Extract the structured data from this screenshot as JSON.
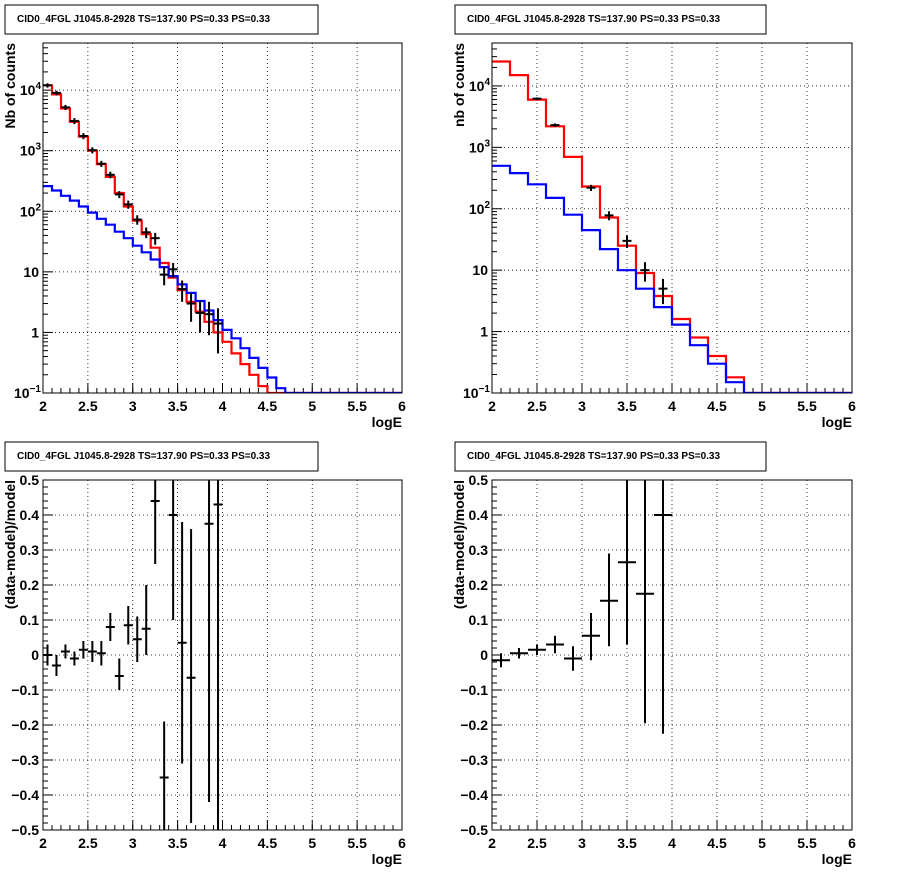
{
  "chart_data": [
    {
      "type": "line",
      "title": "CID0_4FGL J1045.8-2928 TS=137.90 PS=0.33 PS=0.33",
      "xlabel": "logE",
      "ylabel": "Nb of counts",
      "xlim": [
        2,
        6
      ],
      "ylim": [
        0.1,
        60000
      ],
      "yscale": "log",
      "grid": true,
      "xticks": [
        "2",
        "2.5",
        "3",
        "3.5",
        "4",
        "4.5",
        "5",
        "5.5",
        "6"
      ],
      "yticks": [
        {
          "v": 0.1,
          "label": "10",
          "sup": "−1"
        },
        {
          "v": 1,
          "label": "1",
          "sup": ""
        },
        {
          "v": 10,
          "label": "10",
          "sup": ""
        },
        {
          "v": 100,
          "label": "10",
          "sup": "2"
        },
        {
          "v": 1000,
          "label": "10",
          "sup": "3"
        },
        {
          "v": 10000,
          "label": "10",
          "sup": "4"
        }
      ],
      "bin_edges": [
        2.0,
        2.1,
        2.2,
        2.3,
        2.4,
        2.5,
        2.6,
        2.7,
        2.8,
        2.9,
        3.0,
        3.1,
        3.2,
        3.3,
        3.4,
        3.5,
        3.6,
        3.7,
        3.8,
        3.9,
        4.0,
        4.1,
        4.2,
        4.3,
        4.4,
        4.5,
        4.6,
        4.7,
        4.8,
        4.9,
        5.0,
        5.1,
        5.2,
        5.3,
        5.4,
        5.5,
        5.6,
        5.7,
        5.8,
        5.9,
        6.0
      ],
      "series": [
        {
          "color": "#ff0000",
          "style": "step",
          "values": [
            12000,
            8500,
            5000,
            3000,
            1700,
            1000,
            600,
            370,
            200,
            120,
            70,
            42,
            25,
            14,
            8,
            5,
            3.2,
            2.2,
            1.5,
            1.0,
            0.7,
            0.45,
            0.3,
            0.2,
            0.13,
            0.1,
            0.1,
            0.1,
            0.1,
            0.1,
            0.1,
            0.1,
            0.1,
            0.1,
            0.1,
            0.1,
            0.1,
            0.1,
            0.1,
            0.1
          ]
        },
        {
          "color": "#0000ff",
          "style": "step",
          "values": [
            260,
            220,
            180,
            150,
            120,
            95,
            75,
            60,
            46,
            36,
            27,
            21,
            16,
            12,
            8.5,
            6.2,
            4.5,
            3.3,
            2.3,
            1.6,
            1.1,
            0.8,
            0.55,
            0.38,
            0.26,
            0.18,
            0.12,
            0.1,
            0.1,
            0.1,
            0.1,
            0.1,
            0.1,
            0.1,
            0.1,
            0.1,
            0.1,
            0.1,
            0.1,
            0.1
          ]
        },
        {
          "color": "#000000",
          "style": "points",
          "points": [
            {
              "x": 2.05,
              "y": 12000,
              "lo": 11000,
              "hi": 13000
            },
            {
              "x": 2.15,
              "y": 9000,
              "lo": 8200,
              "hi": 9800
            },
            {
              "x": 2.25,
              "y": 5200,
              "lo": 4700,
              "hi": 5700
            },
            {
              "x": 2.35,
              "y": 3100,
              "lo": 2750,
              "hi": 3450
            },
            {
              "x": 2.45,
              "y": 1750,
              "lo": 1550,
              "hi": 1950
            },
            {
              "x": 2.55,
              "y": 1020,
              "lo": 900,
              "hi": 1140
            },
            {
              "x": 2.65,
              "y": 610,
              "lo": 540,
              "hi": 680
            },
            {
              "x": 2.75,
              "y": 400,
              "lo": 350,
              "hi": 450
            },
            {
              "x": 2.85,
              "y": 190,
              "lo": 165,
              "hi": 215
            },
            {
              "x": 2.95,
              "y": 130,
              "lo": 110,
              "hi": 150
            },
            {
              "x": 3.05,
              "y": 73,
              "lo": 60,
              "hi": 86
            },
            {
              "x": 3.15,
              "y": 45,
              "lo": 36,
              "hi": 54
            },
            {
              "x": 3.25,
              "y": 36,
              "lo": 28,
              "hi": 44
            },
            {
              "x": 3.35,
              "y": 9,
              "lo": 6,
              "hi": 12
            },
            {
              "x": 3.45,
              "y": 11,
              "lo": 8,
              "hi": 14
            },
            {
              "x": 3.55,
              "y": 5.2,
              "lo": 3.2,
              "hi": 7.2
            },
            {
              "x": 3.65,
              "y": 3,
              "lo": 1.5,
              "hi": 4.5
            },
            {
              "x": 3.75,
              "y": 2.1,
              "lo": 1.0,
              "hi": 3.3
            },
            {
              "x": 3.85,
              "y": 2.0,
              "lo": 0.9,
              "hi": 3.2
            },
            {
              "x": 3.95,
              "y": 1.4,
              "lo": 0.45,
              "hi": 2.5
            }
          ]
        }
      ]
    },
    {
      "type": "line",
      "title": "CID0_4FGL J1045.8-2928 TS=137.90 PS=0.33 PS=0.33",
      "xlabel": "logE",
      "ylabel": "nb of counts",
      "xlim": [
        2,
        6
      ],
      "ylim": [
        0.1,
        50000
      ],
      "yscale": "log",
      "grid": true,
      "xticks": [
        "2",
        "2.5",
        "3",
        "3.5",
        "4",
        "4.5",
        "5",
        "5.5",
        "6"
      ],
      "yticks": [
        {
          "v": 0.1,
          "label": "10",
          "sup": "−1"
        },
        {
          "v": 1,
          "label": "1",
          "sup": ""
        },
        {
          "v": 10,
          "label": "10",
          "sup": ""
        },
        {
          "v": 100,
          "label": "10",
          "sup": "2"
        },
        {
          "v": 1000,
          "label": "10",
          "sup": "3"
        },
        {
          "v": 10000,
          "label": "10",
          "sup": "4"
        }
      ],
      "bin_edges": [
        2.0,
        2.2,
        2.4,
        2.6,
        2.8,
        3.0,
        3.2,
        3.4,
        3.6,
        3.8,
        4.0,
        4.2,
        4.4,
        4.6,
        4.8,
        5.0,
        5.2,
        5.4,
        5.6,
        5.8,
        6.0
      ],
      "series": [
        {
          "color": "#ff0000",
          "style": "step",
          "values": [
            25000,
            15000,
            6000,
            2200,
            700,
            230,
            72,
            25,
            9,
            3.8,
            1.6,
            0.8,
            0.4,
            0.18,
            0.1,
            0.1,
            0.1,
            0.1,
            0.1,
            0.1
          ]
        },
        {
          "color": "#0000ff",
          "style": "step",
          "values": [
            500,
            380,
            250,
            150,
            80,
            45,
            22,
            10,
            5,
            2.5,
            1.3,
            0.6,
            0.3,
            0.15,
            0.1,
            0.1,
            0.1,
            0.1,
            0.1,
            0.1
          ]
        },
        {
          "color": "#000000",
          "style": "points",
          "points": [
            {
              "x": 2.5,
              "y": 6200,
              "lo": 5900,
              "hi": 6500
            },
            {
              "x": 2.7,
              "y": 2300,
              "lo": 2150,
              "hi": 2450
            },
            {
              "x": 3.1,
              "y": 220,
              "lo": 195,
              "hi": 245
            },
            {
              "x": 3.3,
              "y": 78,
              "lo": 65,
              "hi": 91
            },
            {
              "x": 3.5,
              "y": 30,
              "lo": 23,
              "hi": 37
            },
            {
              "x": 3.7,
              "y": 10,
              "lo": 6.5,
              "hi": 13.5
            },
            {
              "x": 3.9,
              "y": 5,
              "lo": 2.8,
              "hi": 7.2
            }
          ]
        }
      ]
    },
    {
      "type": "scatter",
      "title": "CID0_4FGL J1045.8-2928 TS=137.90 PS=0.33 PS=0.33",
      "xlabel": "logE",
      "ylabel": "(data-model)/model",
      "xlim": [
        2,
        6
      ],
      "ylim": [
        -0.5,
        0.5
      ],
      "yscale": "linear",
      "grid": true,
      "xticks": [
        "2",
        "2.5",
        "3",
        "3.5",
        "4",
        "4.5",
        "5",
        "5.5",
        "6"
      ],
      "yticks": [
        {
          "v": -0.5,
          "label": "−0.5"
        },
        {
          "v": -0.4,
          "label": "−0.4"
        },
        {
          "v": -0.3,
          "label": "−0.3"
        },
        {
          "v": -0.2,
          "label": "−0.2"
        },
        {
          "v": -0.1,
          "label": "−0.1"
        },
        {
          "v": 0,
          "label": "0"
        },
        {
          "v": 0.1,
          "label": "0.1"
        },
        {
          "v": 0.2,
          "label": "0.2"
        },
        {
          "v": 0.3,
          "label": "0.3"
        },
        {
          "v": 0.4,
          "label": "0.4"
        },
        {
          "v": 0.5,
          "label": "0.5"
        }
      ],
      "series": [
        {
          "color": "#000000",
          "style": "points",
          "xerr": 0.05,
          "points": [
            {
              "x": 2.05,
              "y": 0.0,
              "lo": -0.03,
              "hi": 0.03
            },
            {
              "x": 2.15,
              "y": -0.03,
              "lo": -0.06,
              "hi": 0.0
            },
            {
              "x": 2.25,
              "y": 0.01,
              "lo": -0.01,
              "hi": 0.03
            },
            {
              "x": 2.35,
              "y": -0.01,
              "lo": -0.03,
              "hi": 0.01
            },
            {
              "x": 2.45,
              "y": 0.015,
              "lo": -0.01,
              "hi": 0.04
            },
            {
              "x": 2.55,
              "y": 0.01,
              "lo": -0.02,
              "hi": 0.04
            },
            {
              "x": 2.65,
              "y": 0.005,
              "lo": -0.03,
              "hi": 0.04
            },
            {
              "x": 2.75,
              "y": 0.08,
              "lo": 0.04,
              "hi": 0.12
            },
            {
              "x": 2.85,
              "y": -0.06,
              "lo": -0.1,
              "hi": -0.01
            },
            {
              "x": 2.95,
              "y": 0.085,
              "lo": 0.03,
              "hi": 0.14
            },
            {
              "x": 3.05,
              "y": 0.045,
              "lo": -0.02,
              "hi": 0.11
            },
            {
              "x": 3.15,
              "y": 0.075,
              "lo": 0.0,
              "hi": 0.2
            },
            {
              "x": 3.25,
              "y": 0.44,
              "lo": 0.26,
              "hi": 0.5
            },
            {
              "x": 3.35,
              "y": -0.35,
              "lo": -0.5,
              "hi": -0.19
            },
            {
              "x": 3.45,
              "y": 0.4,
              "lo": 0.1,
              "hi": 0.5
            },
            {
              "x": 3.55,
              "y": 0.035,
              "lo": -0.31,
              "hi": 0.38
            },
            {
              "x": 3.65,
              "y": -0.065,
              "lo": -0.48,
              "hi": 0.36
            },
            {
              "x": 3.85,
              "y": 0.375,
              "lo": -0.42,
              "hi": 0.5
            },
            {
              "x": 3.95,
              "y": 0.43,
              "lo": -0.5,
              "hi": 0.5
            }
          ]
        }
      ]
    },
    {
      "type": "scatter",
      "title": "CID0_4FGL J1045.8-2928 TS=137.90 PS=0.33 PS=0.33",
      "xlabel": "logE",
      "ylabel": "(data-model)/model",
      "xlim": [
        2,
        6
      ],
      "ylim": [
        -0.5,
        0.5
      ],
      "yscale": "linear",
      "grid": true,
      "xticks": [
        "2",
        "2.5",
        "3",
        "3.5",
        "4",
        "4.5",
        "5",
        "5.5",
        "6"
      ],
      "yticks": [
        {
          "v": -0.5,
          "label": "−0.5"
        },
        {
          "v": -0.4,
          "label": "−0.4"
        },
        {
          "v": -0.3,
          "label": "−0.3"
        },
        {
          "v": -0.2,
          "label": "−0.2"
        },
        {
          "v": -0.1,
          "label": "−0.1"
        },
        {
          "v": 0,
          "label": "0"
        },
        {
          "v": 0.1,
          "label": "0.1"
        },
        {
          "v": 0.2,
          "label": "0.2"
        },
        {
          "v": 0.3,
          "label": "0.3"
        },
        {
          "v": 0.4,
          "label": "0.4"
        },
        {
          "v": 0.5,
          "label": "0.5"
        }
      ],
      "series": [
        {
          "color": "#000000",
          "style": "points",
          "xerr": 0.1,
          "points": [
            {
              "x": 2.1,
              "y": -0.015,
              "lo": -0.035,
              "hi": 0.005
            },
            {
              "x": 2.3,
              "y": 0.005,
              "lo": -0.01,
              "hi": 0.02
            },
            {
              "x": 2.5,
              "y": 0.015,
              "lo": 0.0,
              "hi": 0.03
            },
            {
              "x": 2.7,
              "y": 0.03,
              "lo": 0.005,
              "hi": 0.055
            },
            {
              "x": 2.9,
              "y": -0.01,
              "lo": -0.045,
              "hi": 0.025
            },
            {
              "x": 3.1,
              "y": 0.055,
              "lo": -0.015,
              "hi": 0.12
            },
            {
              "x": 3.3,
              "y": 0.155,
              "lo": 0.025,
              "hi": 0.29
            },
            {
              "x": 3.5,
              "y": 0.265,
              "lo": 0.03,
              "hi": 0.5
            },
            {
              "x": 3.7,
              "y": 0.175,
              "lo": -0.195,
              "hi": 0.5
            },
            {
              "x": 3.9,
              "y": 0.4,
              "lo": -0.225,
              "hi": 0.5
            }
          ]
        }
      ]
    }
  ]
}
